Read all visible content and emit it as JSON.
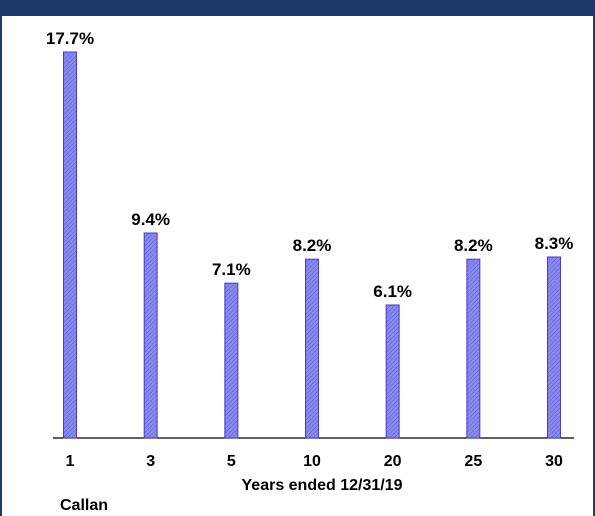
{
  "colors": {
    "header": "#1a3a6b",
    "bar_fill": "#8a8aee",
    "bar_stroke": "#4040c0",
    "axis": "#000000"
  },
  "chart_data": {
    "type": "bar",
    "categories": [
      "1",
      "3",
      "5",
      "10",
      "20",
      "25",
      "30"
    ],
    "values": [
      17.7,
      9.4,
      7.1,
      8.2,
      6.1,
      8.2,
      8.3
    ],
    "value_labels": [
      "17.7%",
      "9.4%",
      "7.1%",
      "8.2%",
      "6.1%",
      "8.2%",
      "8.3%"
    ],
    "title": "",
    "xlabel": "Years ended 12/31/19",
    "ylabel": "",
    "ylim": [
      0,
      17.7
    ],
    "grid": false,
    "legend": "none"
  },
  "source": "Callan"
}
